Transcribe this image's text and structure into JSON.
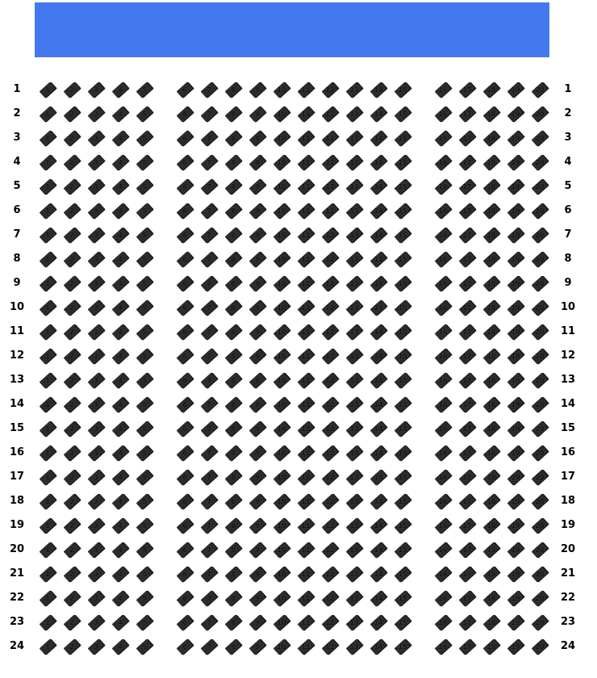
{
  "screen": {
    "color": "#4478ee"
  },
  "seat_color": "#2b2b2b",
  "rows": [
    "1",
    "2",
    "3",
    "4",
    "5",
    "6",
    "7",
    "8",
    "9",
    "10",
    "11",
    "12",
    "13",
    "14",
    "15",
    "16",
    "17",
    "18",
    "19",
    "20",
    "21",
    "22",
    "23",
    "24"
  ],
  "blocks": [
    [
      "1",
      "2",
      "3",
      "4",
      "5"
    ],
    [
      "6",
      "7",
      "8",
      "9",
      "10",
      "11",
      "12",
      "13",
      "14",
      "15"
    ],
    [
      "16",
      "17",
      "18",
      "19",
      "20"
    ]
  ]
}
